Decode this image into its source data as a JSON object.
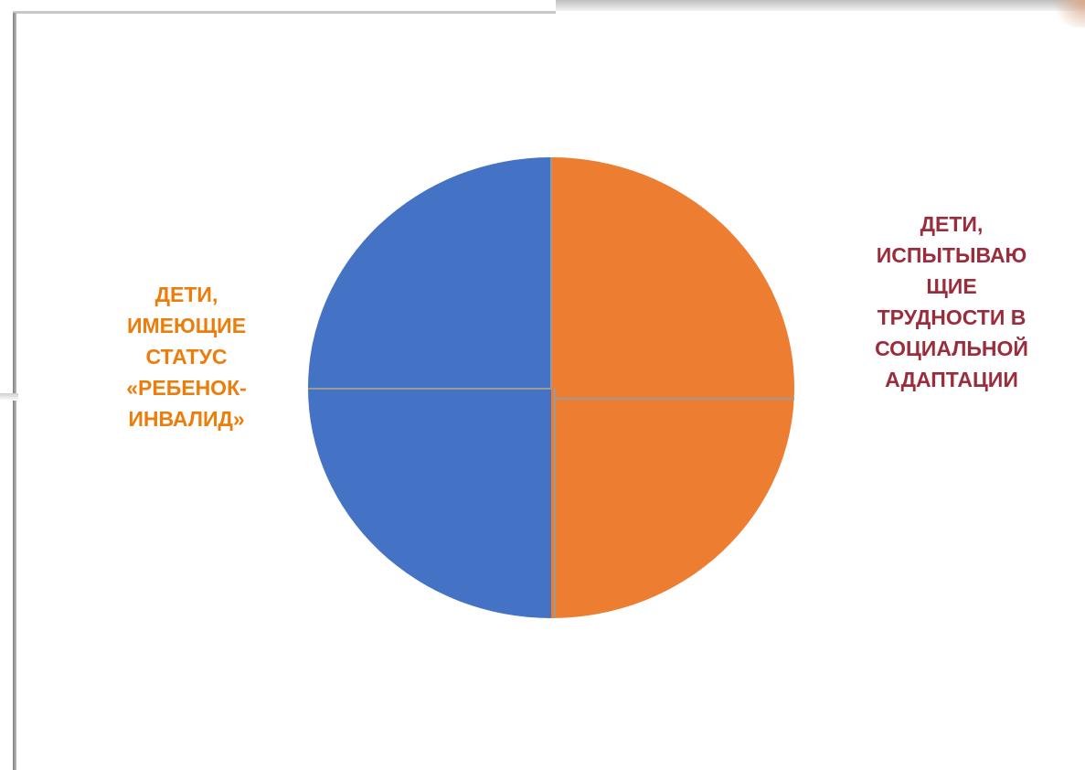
{
  "chart_data": {
    "type": "pie",
    "categories": [
      "ДЕТИ, ИСПЫТЫВАЮ ЩИЕ ТРУДНОСТИ В СОЦИАЛЬНОЙ АДАПТАЦИИ",
      "ДЕТИ, ИМЕЮЩИЕ СТАТУС «РЕБЕНОК-ИНВАЛИД»"
    ],
    "values": [
      50,
      50
    ],
    "slices": [
      {
        "label": "ДЕТИ,\nИСПЫТЫВАЮ\nЩИЕ\nТРУДНОСТИ В\nСОЦИАЛЬНОЙ\nАДАПТАЦИИ",
        "value": 50,
        "color": "#ed7d31",
        "label_color": "#9b2c3c"
      },
      {
        "label": "ДЕТИ,\nИМЕЮЩИЕ\nСТАТУС\n«РЕБЕНОК-\nИНВАЛИД»",
        "value": 50,
        "color": "#4472c4",
        "label_color": "#ed7d0a"
      }
    ],
    "title": "",
    "legend": "none"
  }
}
